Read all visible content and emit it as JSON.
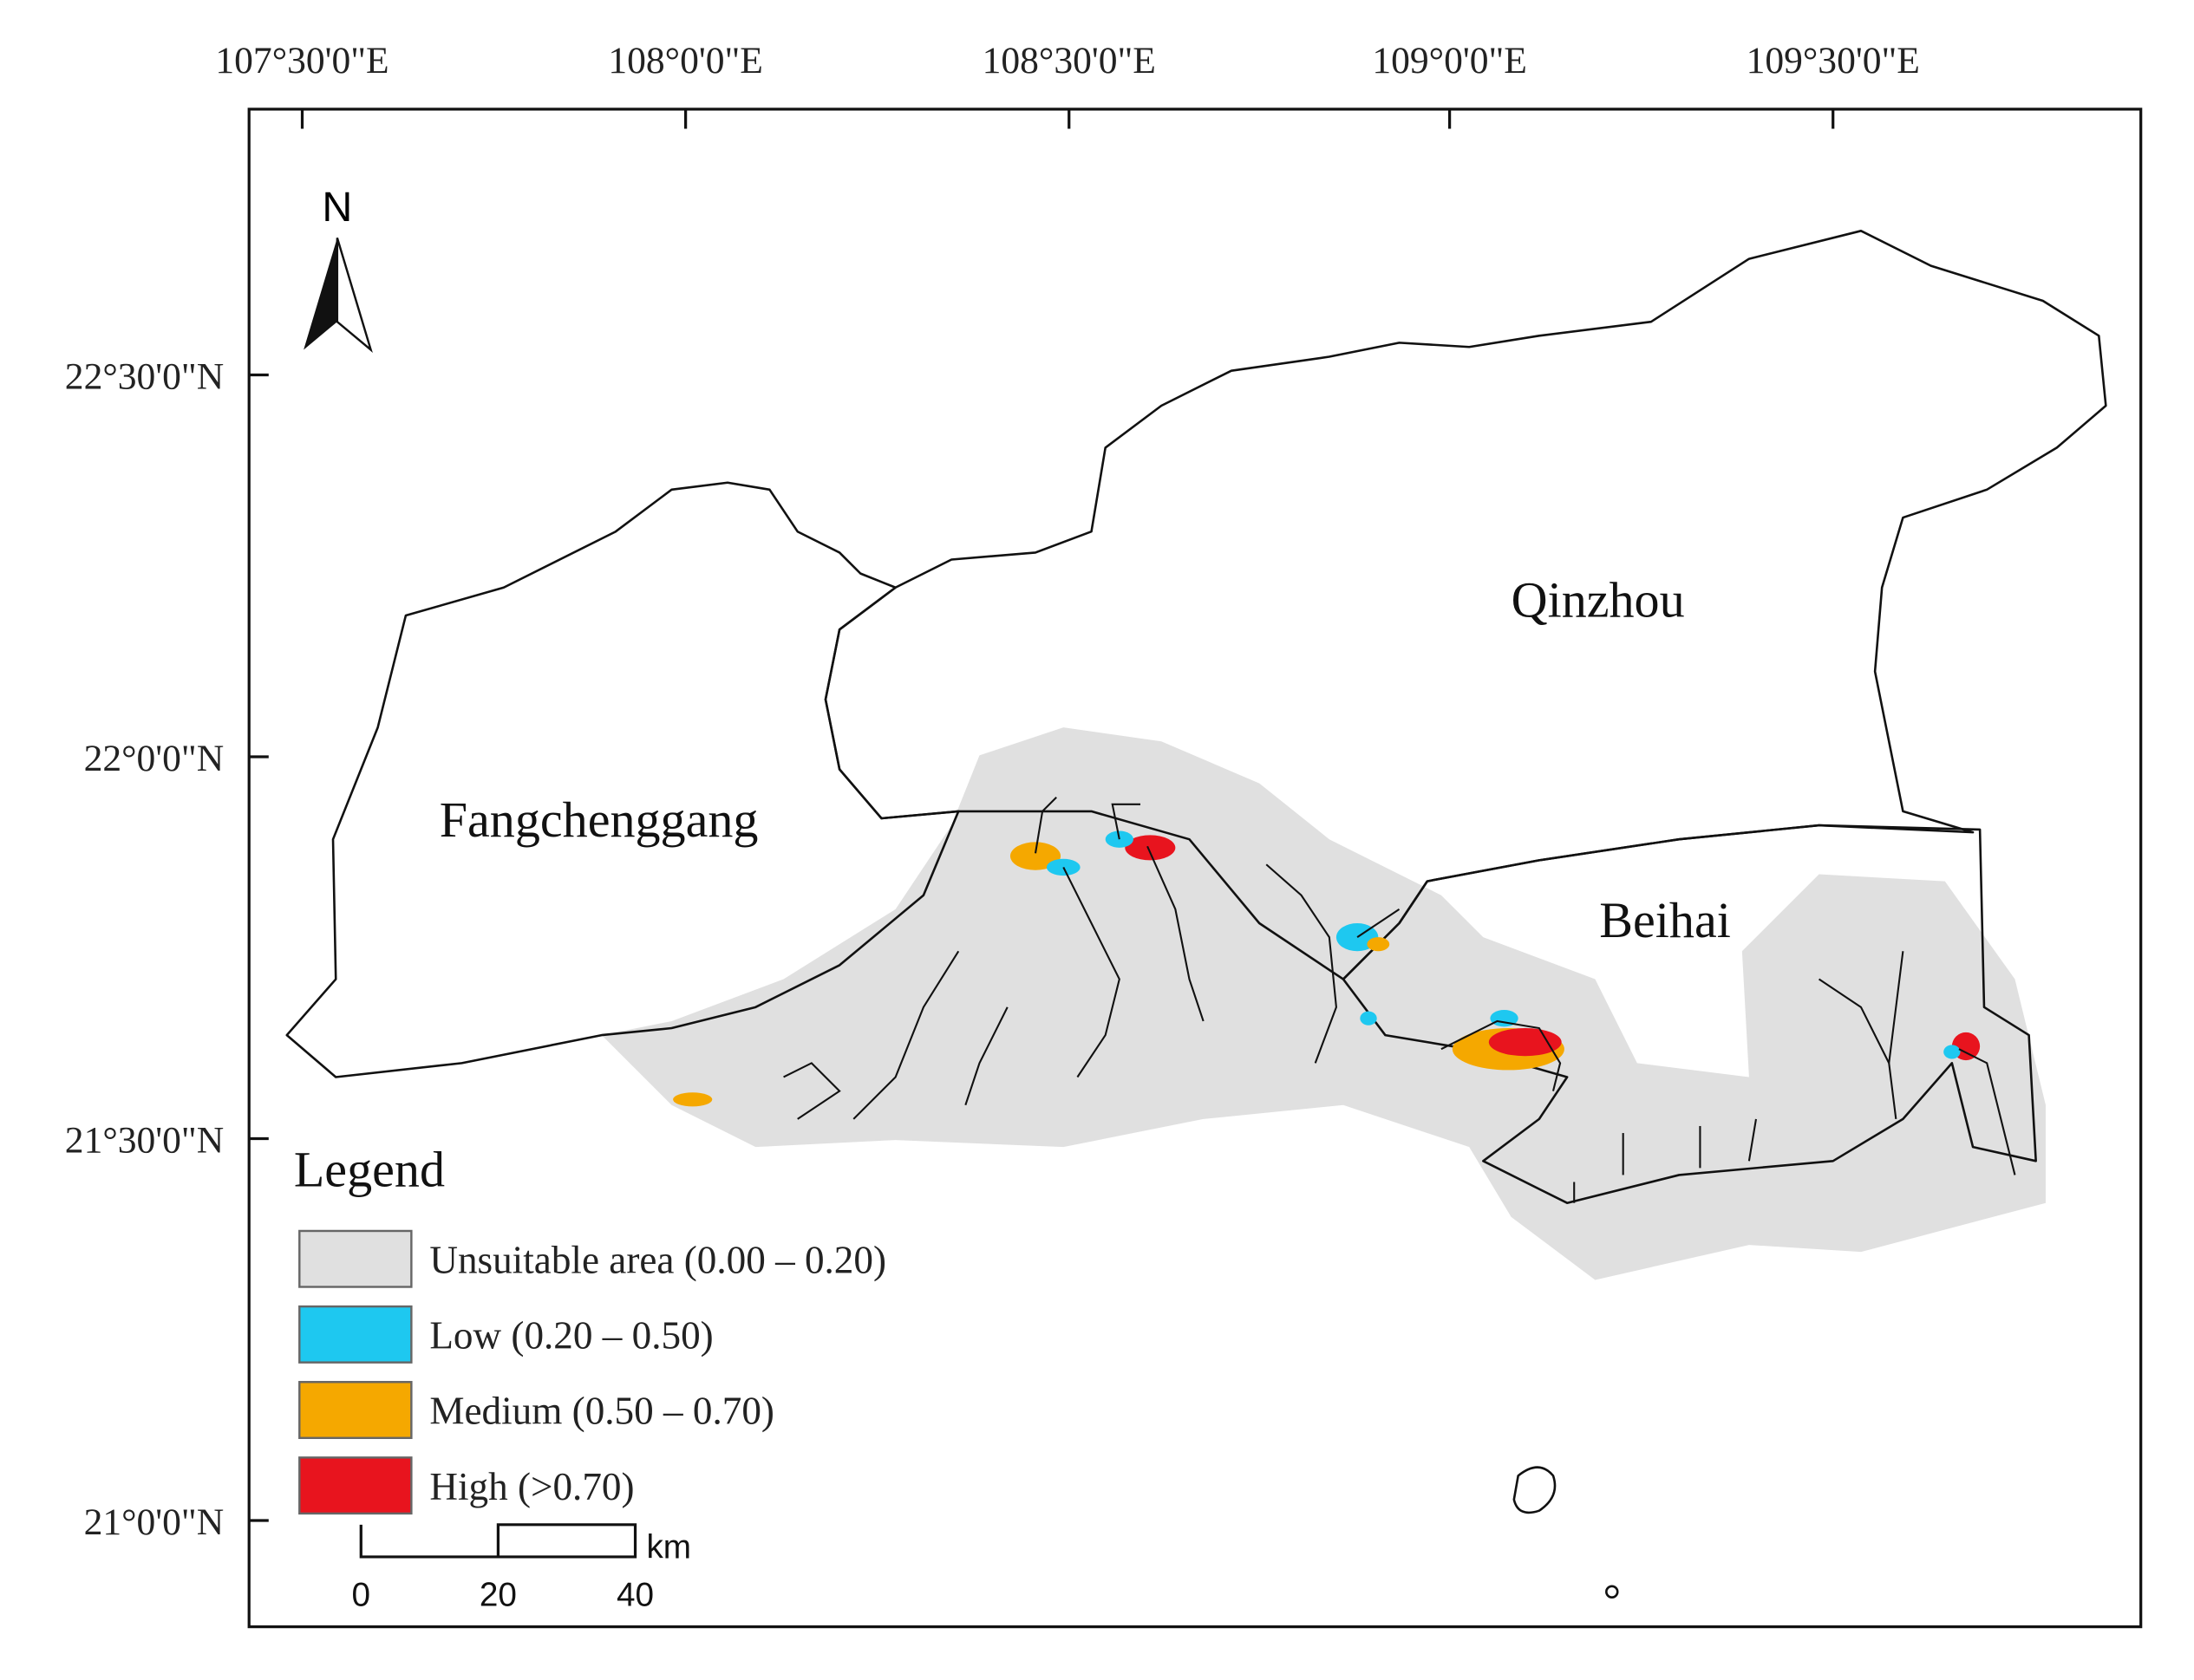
{
  "map": {
    "longitude_labels": [
      "107°30'0\"E",
      "108°0'0\"E",
      "108°30'0\"E",
      "109°0'0\"E",
      "109°30'0\"E"
    ],
    "latitude_labels": [
      "22°30'0\"N",
      "22°0'0\"N",
      "21°30'0\"N",
      "21°0'0\"N"
    ],
    "north": "N",
    "regions": [
      "Qinzhou",
      "Fangchenggang",
      "Beihai"
    ],
    "legend": {
      "title": "Legend",
      "items": [
        {
          "label": "Unsuitable area (0.00 – 0.20)",
          "color": "#e0e0e0"
        },
        {
          "label": "Low (0.20 – 0.50)",
          "color": "#1ec8f0"
        },
        {
          "label": "Medium (0.50 – 0.70)",
          "color": "#f5a800"
        },
        {
          "label": "High (>0.70)",
          "color": "#e8141e"
        }
      ]
    },
    "scale_bar": {
      "labels": [
        "0",
        "20",
        "40"
      ],
      "unit": "km"
    }
  }
}
